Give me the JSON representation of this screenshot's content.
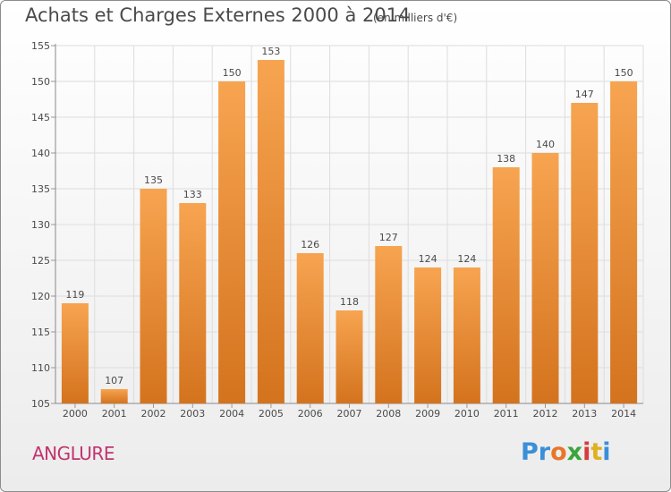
{
  "header": {
    "title": "Achats et Charges Externes 2000 à 2014",
    "subtitle": "(en milliers d'€)"
  },
  "footer": {
    "commune": "ANGLURE",
    "logo": [
      "Pr",
      "o",
      "x",
      "i",
      "t",
      "i"
    ]
  },
  "colors": {
    "bar_top": "#f7a450",
    "bar_bottom": "#d4731e",
    "grid": "#dddddd",
    "title": "#4a4a4a",
    "commune": "#c2336f"
  },
  "chart_data": {
    "type": "bar",
    "title": "Achats et Charges Externes 2000 à 2014",
    "subtitle": "(en milliers d'€)",
    "categories": [
      "2000",
      "2001",
      "2002",
      "2003",
      "2004",
      "2005",
      "2006",
      "2007",
      "2008",
      "2009",
      "2010",
      "2011",
      "2012",
      "2013",
      "2014"
    ],
    "values": [
      119,
      107,
      135,
      133,
      150,
      153,
      126,
      118,
      127,
      124,
      124,
      138,
      140,
      147,
      150
    ],
    "ylim": [
      105,
      155
    ],
    "yticks": [
      105,
      110,
      115,
      120,
      125,
      130,
      135,
      140,
      145,
      150,
      155
    ],
    "grid": true,
    "data_labels": true
  }
}
